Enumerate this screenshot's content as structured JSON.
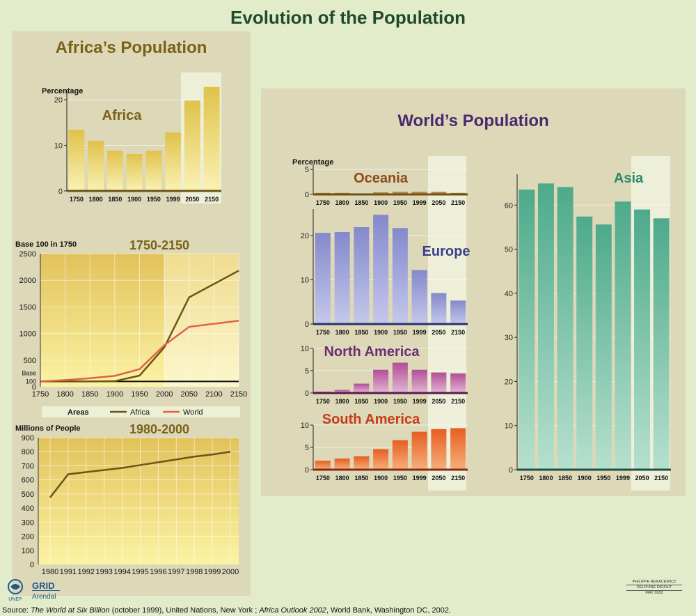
{
  "page": {
    "title": "Evolution of the Population",
    "africa_section_title": "Africa’s Population",
    "world_section_title": "World’s Population",
    "source": {
      "prefix": "Source: ",
      "book1": "The World at Six Billion",
      "part2": " (october 1999), United Nations, New York ; ",
      "book2": "Africa Outlook 2002",
      "part3": ", World Bank, Washington DC, 2002."
    },
    "credit": [
      "PHILIPPE REKACEWICZ",
      "DELPHINE DIGOUT",
      "MAY 2002"
    ],
    "logos": {
      "unep": "UNEP",
      "grid_top": "GRID",
      "grid_bottom": "Arendal"
    }
  },
  "chart_data": [
    {
      "id": "africa-share",
      "type": "bar",
      "title": "Africa",
      "ylabel": "Percentage",
      "categories": [
        "1750",
        "1800",
        "1850",
        "1900",
        "1950",
        "1999",
        "2050",
        "2150"
      ],
      "values": [
        13.4,
        11,
        8.8,
        8.1,
        8.8,
        12.8,
        19.8,
        22.8
      ],
      "ylim": [
        0,
        22
      ],
      "yticks": [
        0,
        10,
        20
      ],
      "projection_categories": [
        "2050",
        "2150"
      ],
      "color": "#e8c846"
    },
    {
      "id": "growth-1750-2150",
      "type": "line",
      "title": "1750-2150",
      "ylabel": "Base 100 in 1750",
      "x": [
        1750,
        1800,
        1850,
        1900,
        1950,
        2000,
        2050,
        2150
      ],
      "xticks": [
        1750,
        1800,
        1850,
        1900,
        1950,
        2000,
        2050,
        2100,
        2150
      ],
      "yticks": [
        0,
        500,
        1000,
        1500,
        2000,
        2500
      ],
      "ylim": [
        0,
        2500
      ],
      "base_label": "Base",
      "base_value": 100,
      "series": [
        {
          "name": "Africa",
          "values": [
            100,
            100,
            100,
            104,
            210,
            740,
            1680,
            2180
          ],
          "color": "#6b5416"
        },
        {
          "name": "World",
          "values": [
            100,
            125,
            160,
            205,
            330,
            780,
            1125,
            1240
          ],
          "color": "#e0604a"
        }
      ],
      "legend_title": "Areas",
      "projection_start": 2000
    },
    {
      "id": "africa-1980-2000",
      "type": "line",
      "title": "1980-2000",
      "ylabel": "Millions of People",
      "x": [
        "1980",
        "1991",
        "1992",
        "1993",
        "1994",
        "1995",
        "1996",
        "1997",
        "1998",
        "1999",
        "2000"
      ],
      "values": [
        475,
        640,
        655,
        670,
        685,
        705,
        725,
        745,
        765,
        780,
        800
      ],
      "yticks": [
        0,
        100,
        200,
        300,
        400,
        500,
        600,
        700,
        800,
        900
      ],
      "ylim": [
        0,
        900
      ],
      "color": "#6b5416"
    },
    {
      "id": "oceania-share",
      "type": "bar",
      "title": "Oceania",
      "ylabel": "Percentage",
      "categories": [
        "1750",
        "1800",
        "1850",
        "1900",
        "1950",
        "1999",
        "2050",
        "2150"
      ],
      "values": [
        0.3,
        0.3,
        0.2,
        0.4,
        0.5,
        0.5,
        0.5,
        0.3
      ],
      "ylim": [
        0,
        6
      ],
      "yticks": [
        0,
        5
      ],
      "color": "#c7782e"
    },
    {
      "id": "europe-share",
      "type": "bar",
      "title": "Europe",
      "categories": [
        "1750",
        "1800",
        "1850",
        "1900",
        "1950",
        "1999",
        "2050",
        "2150"
      ],
      "values": [
        20.6,
        20.8,
        21.9,
        24.7,
        21.7,
        12.2,
        7,
        5.3
      ],
      "ylim": [
        0,
        26
      ],
      "yticks": [
        0,
        10,
        20
      ],
      "color": "#8f95cf"
    },
    {
      "id": "north-america-share",
      "type": "bar",
      "title": "North America",
      "categories": [
        "1750",
        "1800",
        "1850",
        "1900",
        "1950",
        "1999",
        "2050",
        "2150"
      ],
      "values": [
        0.3,
        0.7,
        2.1,
        5.2,
        6.8,
        5.2,
        4.6,
        4.4
      ],
      "ylim": [
        0,
        10
      ],
      "yticks": [
        0,
        5,
        10
      ],
      "color": "#b8589a"
    },
    {
      "id": "south-america-share",
      "type": "bar",
      "title": "South America",
      "categories": [
        "1750",
        "1800",
        "1850",
        "1900",
        "1950",
        "1999",
        "2050",
        "2150"
      ],
      "values": [
        2,
        2.5,
        3,
        4.6,
        6.6,
        8.5,
        9.1,
        9.3
      ],
      "ylim": [
        0,
        10
      ],
      "yticks": [
        0,
        5,
        10
      ],
      "color": "#e96a2a"
    },
    {
      "id": "asia-share",
      "type": "bar",
      "title": "Asia",
      "categories": [
        "1750",
        "1800",
        "1850",
        "1900",
        "1950",
        "1999",
        "2050",
        "2150"
      ],
      "values": [
        63.5,
        64.9,
        64.1,
        57.4,
        55.6,
        60.8,
        59,
        57
      ],
      "ylim": [
        0,
        67
      ],
      "yticks": [
        0,
        10,
        20,
        30,
        40,
        50,
        60
      ],
      "color": "#5cb496"
    }
  ]
}
